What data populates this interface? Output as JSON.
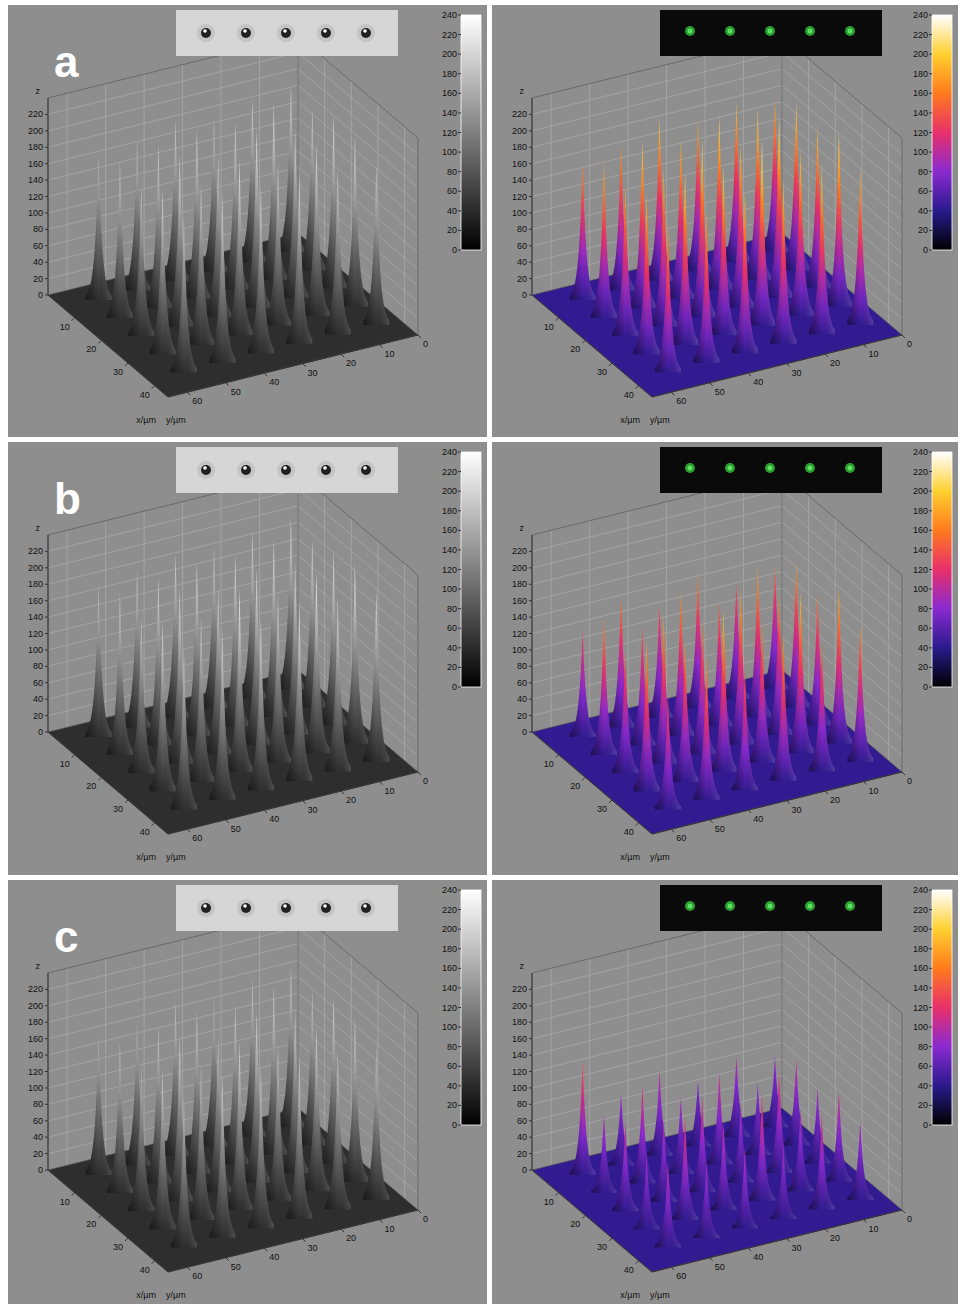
{
  "chart_data": [
    {
      "type": "surface",
      "title": "a",
      "x_label": "x/µm",
      "y_label": "y/µm",
      "z_label": "z",
      "xlim": [
        0,
        45
      ],
      "ylim": [
        0,
        65
      ],
      "zlim": [
        0,
        240
      ],
      "xticks": [
        10,
        20,
        30,
        40
      ],
      "yticks": [
        0,
        10,
        20,
        30,
        40,
        50,
        60
      ],
      "zticks": [
        0,
        20,
        40,
        60,
        80,
        100,
        120,
        140,
        160,
        180,
        200,
        220
      ],
      "grid": true,
      "x": [
        6,
        14,
        22,
        30,
        38
      ],
      "y": [
        6,
        16,
        26,
        36,
        46,
        56
      ],
      "values": [
        [
          205,
          198,
          212,
          208,
          196
        ],
        [
          200,
          215,
          206,
          210,
          202
        ],
        [
          188,
          204,
          218,
          200,
          209
        ],
        [
          196,
          207,
          199,
          214,
          205
        ],
        [
          184,
          201,
          210,
          197,
          206
        ],
        [
          178,
          192,
          186,
          203,
          190
        ]
      ],
      "colorbar": {
        "range": [
          0,
          240
        ],
        "ticks": [
          0,
          20,
          40,
          60,
          80,
          100,
          120,
          140,
          160,
          180,
          200,
          220,
          240
        ],
        "colors": [
          "#000000",
          "#ffffff"
        ]
      }
    },
    {
      "type": "surface",
      "x_label": "x/µm",
      "y_label": "y/µm",
      "z_label": "z",
      "xlim": [
        0,
        45
      ],
      "ylim": [
        0,
        65
      ],
      "zlim": [
        0,
        240
      ],
      "xticks": [
        10,
        20,
        30,
        40
      ],
      "yticks": [
        0,
        10,
        20,
        30,
        40,
        50,
        60
      ],
      "zticks": [
        0,
        20,
        40,
        60,
        80,
        100,
        120,
        140,
        160,
        180,
        200,
        220
      ],
      "grid": true,
      "x": [
        6,
        14,
        22,
        30,
        38
      ],
      "y": [
        6,
        16,
        26,
        36,
        46,
        56
      ],
      "values": [
        [
          188,
          205,
          198,
          214,
          192
        ],
        [
          196,
          210,
          220,
          202,
          207
        ],
        [
          185,
          212,
          198,
          228,
          200
        ],
        [
          200,
          194,
          216,
          205,
          198
        ],
        [
          178,
          206,
          192,
          210,
          186
        ],
        [
          170,
          190,
          184,
          196,
          182
        ]
      ],
      "colorbar": {
        "range": [
          0,
          240
        ],
        "ticks": [
          0,
          20,
          40,
          60,
          80,
          100,
          120,
          140,
          160,
          180,
          200,
          220,
          240
        ],
        "colors": [
          "#000000",
          "#2a1a8c",
          "#8a2ad0",
          "#e8306a",
          "#ff7a1c",
          "#ffd030",
          "#ffffff"
        ]
      }
    },
    {
      "type": "surface",
      "title": "b",
      "x_label": "x/µm",
      "y_label": "y/µm",
      "z_label": "z",
      "xlim": [
        0,
        45
      ],
      "ylim": [
        0,
        65
      ],
      "zlim": [
        0,
        240
      ],
      "xticks": [
        10,
        20,
        30,
        40
      ],
      "yticks": [
        0,
        10,
        20,
        30,
        40,
        50,
        60
      ],
      "zticks": [
        0,
        20,
        40,
        60,
        80,
        100,
        120,
        140,
        160,
        180,
        200,
        220
      ],
      "grid": true,
      "x": [
        6,
        14,
        22,
        30,
        38
      ],
      "y": [
        6,
        16,
        26,
        36,
        46,
        56
      ],
      "values": [
        [
          210,
          205,
          214,
          220,
          208
        ],
        [
          204,
          216,
          211,
          222,
          212
        ],
        [
          198,
          209,
          215,
          206,
          218
        ],
        [
          200,
          212,
          204,
          224,
          210
        ],
        [
          192,
          206,
          213,
          200,
          207
        ],
        [
          186,
          198,
          192,
          208,
          196
        ]
      ],
      "colorbar": {
        "range": [
          0,
          240
        ],
        "ticks": [
          0,
          20,
          40,
          60,
          80,
          100,
          120,
          140,
          160,
          180,
          200,
          220,
          240
        ],
        "colors": [
          "#000000",
          "#ffffff"
        ]
      }
    },
    {
      "type": "surface",
      "x_label": "x/µm",
      "y_label": "y/µm",
      "z_label": "z",
      "xlim": [
        0,
        45
      ],
      "ylim": [
        0,
        65
      ],
      "zlim": [
        0,
        240
      ],
      "xticks": [
        10,
        20,
        30,
        40
      ],
      "yticks": [
        0,
        10,
        20,
        30,
        40,
        50,
        60
      ],
      "zticks": [
        0,
        20,
        40,
        60,
        80,
        100,
        120,
        140,
        160,
        180,
        200,
        220
      ],
      "grid": true,
      "x": [
        6,
        14,
        22,
        30,
        38
      ],
      "y": [
        6,
        16,
        26,
        36,
        46,
        56
      ],
      "values": [
        [
          150,
          176,
          160,
          190,
          168
        ],
        [
          142,
          184,
          170,
          196,
          158
        ],
        [
          165,
          152,
          188,
          172,
          180
        ],
        [
          138,
          176,
          164,
          198,
          150
        ],
        [
          160,
          145,
          182,
          170,
          176
        ],
        [
          130,
          168,
          150,
          184,
          140
        ]
      ],
      "colorbar": {
        "range": [
          0,
          240
        ],
        "ticks": [
          0,
          20,
          40,
          60,
          80,
          100,
          120,
          140,
          160,
          180,
          200,
          220,
          240
        ],
        "colors": [
          "#000000",
          "#2a1a8c",
          "#8a2ad0",
          "#e8306a",
          "#ff7a1c",
          "#ffd030",
          "#ffffff"
        ]
      }
    },
    {
      "type": "surface",
      "title": "c",
      "x_label": "x/µm",
      "y_label": "y/µm",
      "z_label": "z",
      "xlim": [
        0,
        45
      ],
      "ylim": [
        0,
        65
      ],
      "zlim": [
        0,
        240
      ],
      "xticks": [
        10,
        20,
        30,
        40
      ],
      "yticks": [
        0,
        10,
        20,
        30,
        40,
        50,
        60
      ],
      "zticks": [
        0,
        20,
        40,
        60,
        80,
        100,
        120,
        140,
        160,
        180,
        200,
        220
      ],
      "grid": true,
      "x": [
        6,
        14,
        22,
        30,
        38
      ],
      "y": [
        6,
        16,
        26,
        36,
        46,
        56
      ],
      "values": [
        [
          196,
          190,
          204,
          200,
          188
        ],
        [
          192,
          206,
          198,
          202,
          194
        ],
        [
          180,
          196,
          208,
          192,
          200
        ],
        [
          188,
          198,
          190,
          206,
          196
        ],
        [
          176,
          192,
          202,
          188,
          198
        ],
        [
          170,
          184,
          178,
          196,
          182
        ]
      ],
      "colorbar": {
        "range": [
          0,
          240
        ],
        "ticks": [
          0,
          20,
          40,
          60,
          80,
          100,
          120,
          140,
          160,
          180,
          200,
          220,
          240
        ],
        "colors": [
          "#000000",
          "#ffffff"
        ]
      }
    },
    {
      "type": "surface",
      "x_label": "x/µm",
      "y_label": "y/µm",
      "z_label": "z",
      "xlim": [
        0,
        45
      ],
      "ylim": [
        0,
        65
      ],
      "zlim": [
        0,
        240
      ],
      "xticks": [
        10,
        20,
        30,
        40
      ],
      "yticks": [
        0,
        10,
        20,
        30,
        40,
        50,
        60
      ],
      "zticks": [
        0,
        20,
        40,
        60,
        80,
        100,
        120,
        140,
        160,
        180,
        200,
        220
      ],
      "grid": true,
      "x": [
        6,
        14,
        22,
        30,
        38
      ],
      "y": [
        6,
        16,
        26,
        36,
        46,
        56
      ],
      "values": [
        [
          86,
          104,
          92,
          110,
          96
        ],
        [
          98,
          88,
          124,
          100,
          116
        ],
        [
          80,
          112,
          96,
          130,
          92
        ],
        [
          104,
          94,
          118,
          108,
          100
        ],
        [
          88,
          120,
          100,
          126,
          94
        ],
        [
          140,
          96,
          110,
          90,
          106
        ]
      ],
      "colorbar": {
        "range": [
          0,
          240
        ],
        "ticks": [
          0,
          20,
          40,
          60,
          80,
          100,
          120,
          140,
          160,
          180,
          200,
          220,
          240
        ],
        "colors": [
          "#000000",
          "#2a1a8c",
          "#8a2ad0",
          "#e8306a",
          "#ff7a1c",
          "#ffd030",
          "#ffffff"
        ]
      }
    }
  ]
}
